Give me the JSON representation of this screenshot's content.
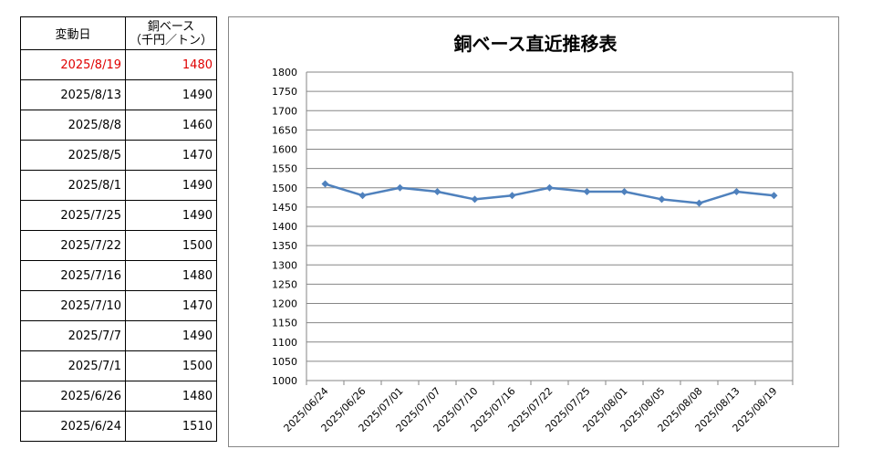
{
  "table": {
    "header_date": "変動日",
    "header_price_line1": "銅ベース",
    "header_price_line2": "（千円／トン）",
    "rows": [
      {
        "date": "2025/8/19",
        "price": "1480"
      },
      {
        "date": "2025/8/13",
        "price": "1490"
      },
      {
        "date": "2025/8/8",
        "price": "1460"
      },
      {
        "date": "2025/8/5",
        "price": "1470"
      },
      {
        "date": "2025/8/1",
        "price": "1490"
      },
      {
        "date": "2025/7/25",
        "price": "1490"
      },
      {
        "date": "2025/7/22",
        "price": "1500"
      },
      {
        "date": "2025/7/16",
        "price": "1480"
      },
      {
        "date": "2025/7/10",
        "price": "1470"
      },
      {
        "date": "2025/7/7",
        "price": "1490"
      },
      {
        "date": "2025/7/1",
        "price": "1500"
      },
      {
        "date": "2025/6/26",
        "price": "1480"
      },
      {
        "date": "2025/6/24",
        "price": "1510"
      }
    ],
    "highlight_color": "#e00000"
  },
  "chart_data": {
    "type": "line",
    "title": "銅ベース直近推移表",
    "categories": [
      "2025/06/24",
      "2025/06/26",
      "2025/07/01",
      "2025/07/07",
      "2025/07/10",
      "2025/07/16",
      "2025/07/22",
      "2025/07/25",
      "2025/08/01",
      "2025/08/05",
      "2025/08/08",
      "2025/08/13",
      "2025/08/19"
    ],
    "series": [
      {
        "values": [
          1510,
          1480,
          1500,
          1490,
          1470,
          1480,
          1500,
          1490,
          1490,
          1470,
          1460,
          1490,
          1480
        ],
        "color": "#4f81bd"
      }
    ],
    "ylim": [
      1000,
      1800
    ],
    "yticks": [
      1000,
      1050,
      1100,
      1150,
      1200,
      1250,
      1300,
      1350,
      1400,
      1450,
      1500,
      1550,
      1600,
      1650,
      1700,
      1750,
      1800
    ],
    "grid": true,
    "legend": "none"
  }
}
